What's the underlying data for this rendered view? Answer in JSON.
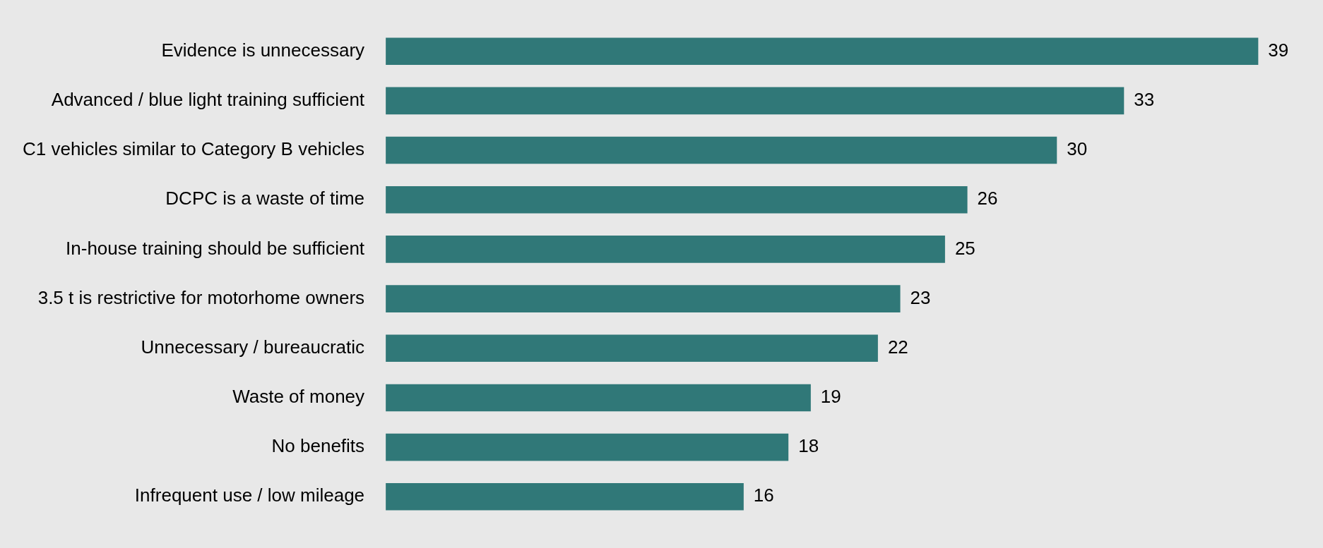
{
  "chart_data": {
    "type": "bar",
    "orientation": "horizontal",
    "categories": [
      "Evidence is unnecessary",
      "Advanced / blue light training sufficient",
      "C1 vehicles similar to Category B vehicles",
      "DCPC is a waste of time",
      "In-house training should be sufficient",
      "3.5 t is restrictive for motorhome owners",
      "Unnecessary / bureaucratic",
      "Waste of money",
      "No benefits",
      "Infrequent use / low mileage"
    ],
    "values": [
      39,
      33,
      30,
      26,
      25,
      23,
      22,
      19,
      18,
      16
    ],
    "color": "#307878",
    "data_labels": true,
    "tick_labels": "y"
  }
}
